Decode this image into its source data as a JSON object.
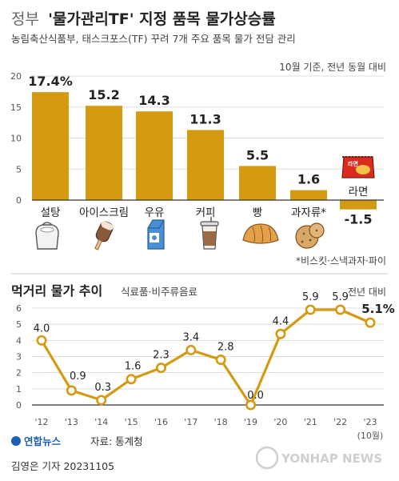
{
  "header": {
    "title_prefix": "정부",
    "title_main": "'물가관리TF' 지정 품목 물가상승률",
    "subtitle": "농림축산식품부, 태스크포스(TF) 꾸려 7개 주요 품목 물가 전담 관리"
  },
  "colors": {
    "bar": "#d39a12",
    "line": "#d39a12",
    "grid": "#dddddd",
    "axis": "#333333"
  },
  "icons": [
    "sugar-sack-icon",
    "ice-cream-icon",
    "milk-carton-icon",
    "coffee-cup-icon",
    "bread-icon",
    "biscuit-icon",
    "ramen-pack-icon"
  ],
  "ramen_pack_label": "라면",
  "chart_data": [
    {
      "type": "bar",
      "annotation": "10월 기준, 전년 동월 대비",
      "footnote": "*비스킷·스낵과자·파이",
      "categories": [
        "설탕",
        "아이스크림",
        "우유",
        "커피",
        "빵",
        "과자류*",
        "라면"
      ],
      "values": [
        17.4,
        15.2,
        14.3,
        11.3,
        5.5,
        1.6,
        -1.5
      ],
      "value_labels": [
        "17.4%",
        "15.2",
        "14.3",
        "11.3",
        "5.5",
        "1.6",
        "-1.5"
      ],
      "yticks": [
        "0",
        "5",
        "10",
        "15",
        "20"
      ],
      "ylim": [
        -2,
        20
      ],
      "grid": true
    },
    {
      "type": "line",
      "title": "먹거리 물가 추이",
      "subtitle": "식료품·비주류음료",
      "annotation": "전년 대비",
      "x": [
        "'12",
        "'13",
        "'14",
        "'15",
        "'16",
        "'17",
        "'18",
        "'19",
        "'20",
        "'21",
        "'22",
        "'23"
      ],
      "x_note": "(10월)",
      "values": [
        4.0,
        0.9,
        0.3,
        1.6,
        2.3,
        3.4,
        2.8,
        0.0,
        4.4,
        5.9,
        5.9,
        5.1
      ],
      "value_labels": [
        "4.0",
        "0.9",
        "0.3",
        "1.6",
        "2.3",
        "3.4",
        "2.8",
        "0.0",
        "4.4",
        "5.9",
        "5.9",
        "5.1%"
      ],
      "yticks": [
        "0",
        "1",
        "2",
        "3",
        "4",
        "5",
        "6"
      ],
      "ylim": [
        0,
        6
      ],
      "grid": true
    }
  ],
  "footer": {
    "logo_text": "연합뉴스",
    "source": "자료: 통계청",
    "credit": "김영은 기자  20231105",
    "watermark": "YONHAP NEWS"
  }
}
